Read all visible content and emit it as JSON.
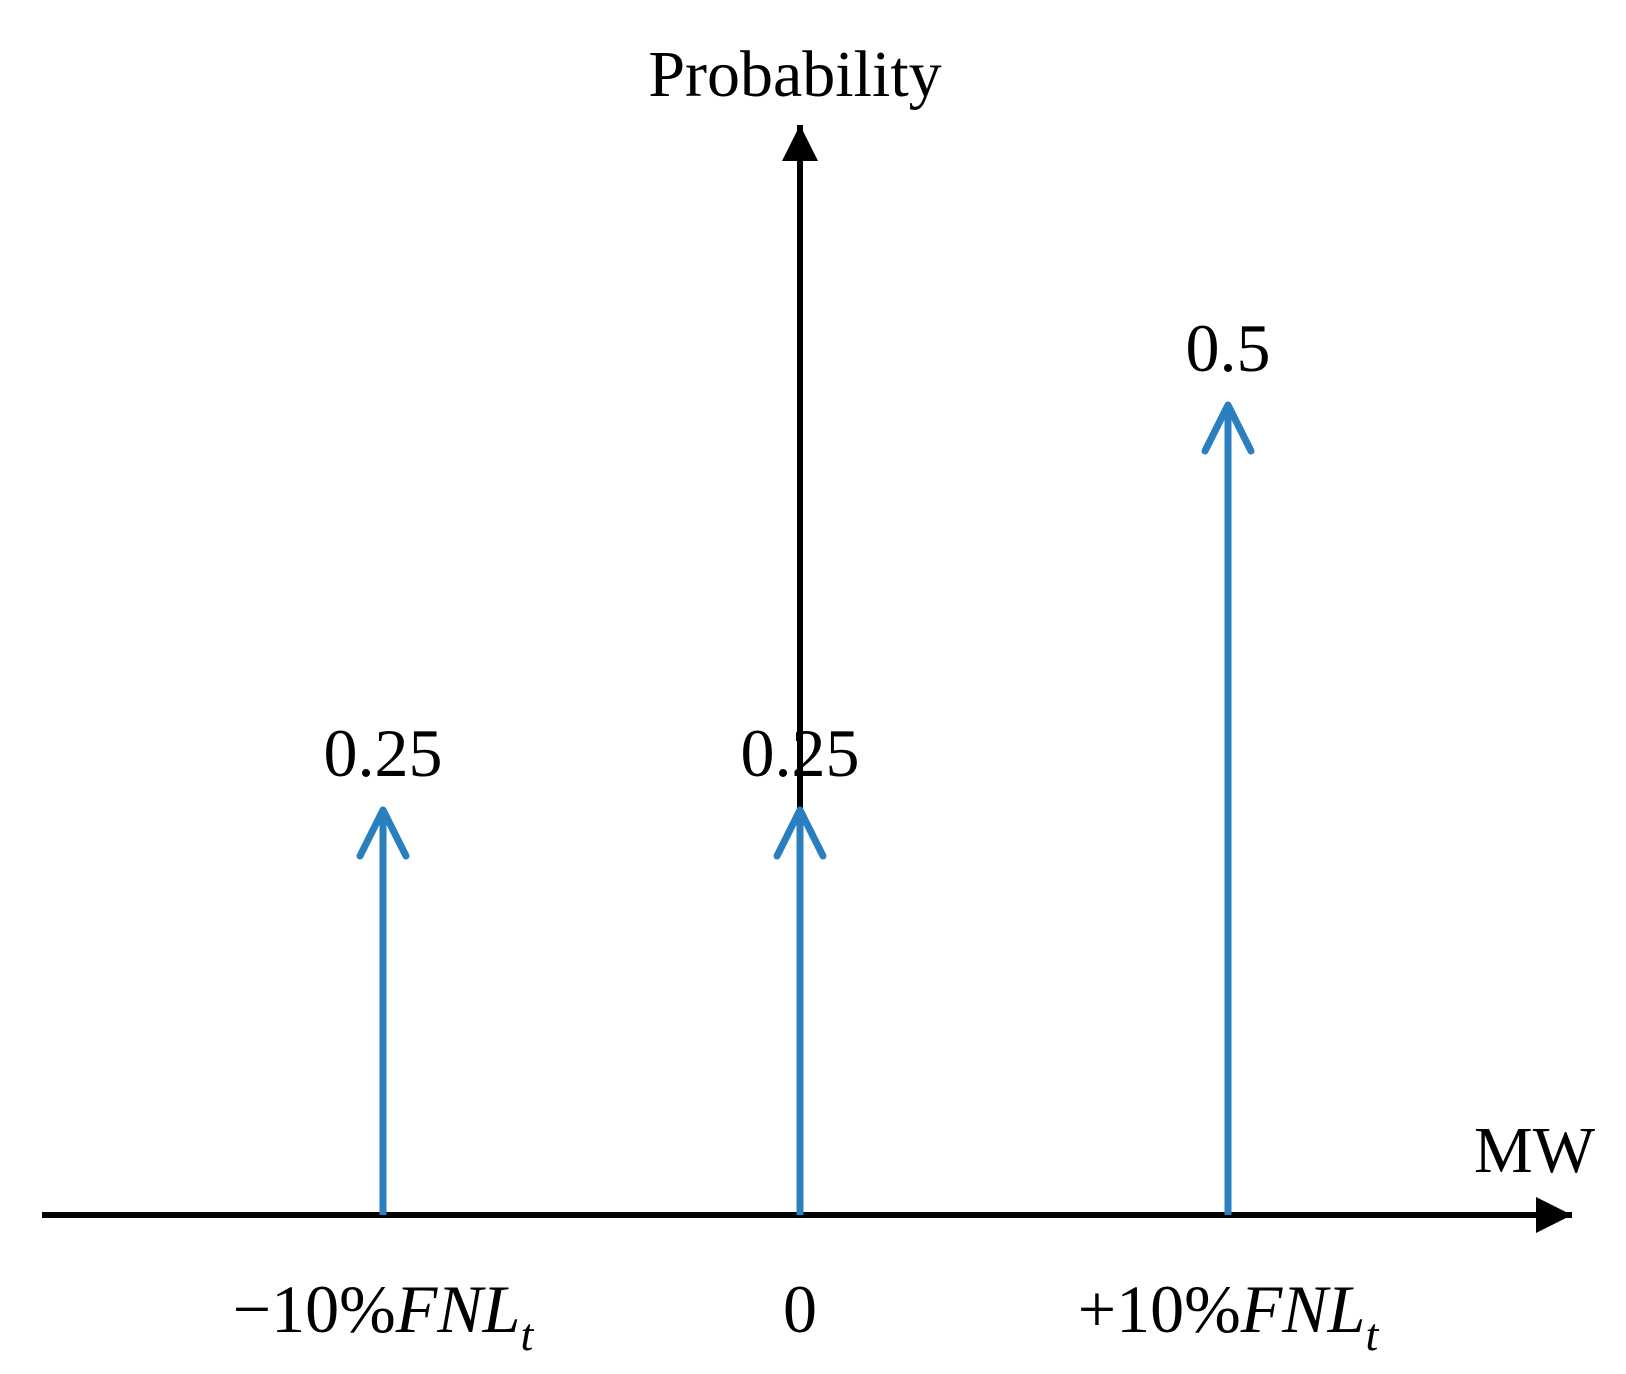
{
  "chart_data": {
    "type": "bar",
    "subtype": "probability-mass-stem",
    "title": "",
    "ylabel": "Probability",
    "xlabel": "MW",
    "ylim": [
      0,
      1
    ],
    "grid": false,
    "legend": "none",
    "categories": [
      {
        "prefix": "−10%",
        "var": "FNL",
        "sub": "t"
      },
      {
        "prefix": "0",
        "var": "",
        "sub": ""
      },
      {
        "prefix": "+10%",
        "var": "FNL",
        "sub": "t"
      }
    ],
    "values": [
      0.25,
      0.25,
      0.5
    ],
    "value_labels": [
      "0.25",
      "0.25",
      "0.5"
    ],
    "colors": {
      "stem": "#2a7fbe",
      "axis": "#000000"
    }
  }
}
